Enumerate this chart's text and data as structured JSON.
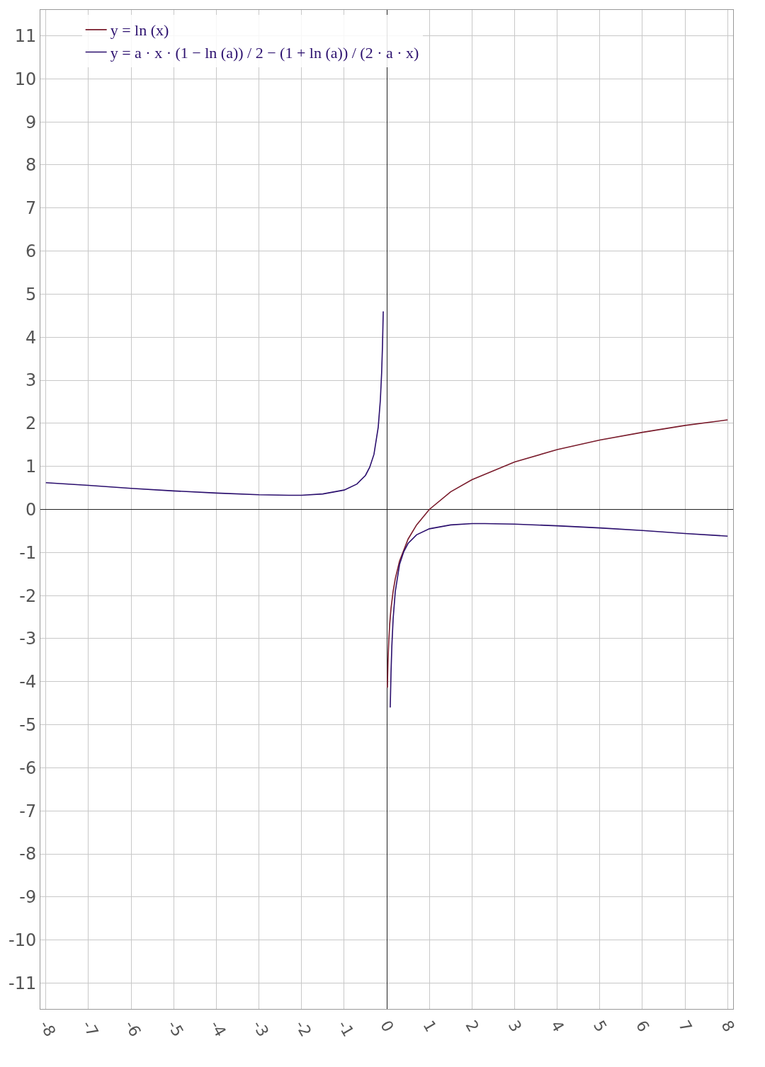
{
  "chart_data": {
    "type": "line",
    "xlim": [
      -8.13,
      8.13
    ],
    "ylim": [
      -11.6,
      11.6
    ],
    "xticks": [
      -8,
      -7,
      -6,
      -5,
      -4,
      -3,
      -2,
      -1,
      0,
      1,
      2,
      3,
      4,
      5,
      6,
      7,
      8
    ],
    "yticks": [
      -11,
      -10,
      -9,
      -8,
      -7,
      -6,
      -5,
      -4,
      -3,
      -2,
      -1,
      0,
      1,
      2,
      3,
      4,
      5,
      6,
      7,
      8,
      9,
      10,
      11
    ],
    "grid": true,
    "legend": "top left",
    "marker": "none",
    "line_style": "solid",
    "series": [
      {
        "name": "y = ln (x)",
        "color": "#7a1c2c",
        "x": [
          0.016,
          0.02,
          0.03,
          0.05,
          0.07,
          0.1,
          0.15,
          0.2,
          0.3,
          0.5,
          0.7,
          1,
          1.5,
          2,
          3,
          4,
          5,
          6,
          7,
          8
        ],
        "values": [
          -4.14,
          -3.91,
          -3.51,
          -3.0,
          -2.66,
          -2.3,
          -1.9,
          -1.61,
          -1.2,
          -0.69,
          -0.36,
          0,
          0.41,
          0.69,
          1.1,
          1.39,
          1.61,
          1.79,
          1.95,
          2.08
        ]
      },
      {
        "name": "y = a · x · (1 − ln (a)) / 2 − (1 + ln (a)) / (2 · a · x)",
        "color": "#2b0f6e",
        "x": [
          -8,
          -7,
          -6,
          -5,
          -4,
          -3,
          -2.3,
          -2,
          -1.5,
          -1,
          -0.7,
          -0.5,
          -0.4,
          -0.3,
          -0.2,
          -0.15,
          -0.12,
          -0.1,
          -0.082,
          0,
          0.082,
          0.1,
          0.12,
          0.15,
          0.2,
          0.3,
          0.4,
          0.5,
          0.7,
          1,
          1.5,
          2,
          2.3,
          3,
          4,
          5,
          6,
          7,
          8
        ],
        "values": [
          0.62,
          0.56,
          0.49,
          0.43,
          0.38,
          0.34,
          0.33,
          0.33,
          0.36,
          0.45,
          0.59,
          0.79,
          0.98,
          1.28,
          1.91,
          2.54,
          3.17,
          3.8,
          4.6,
          null,
          -4.6,
          -3.8,
          -3.17,
          -2.54,
          -1.91,
          -1.28,
          -0.98,
          -0.79,
          -0.59,
          -0.45,
          -0.36,
          -0.33,
          -0.33,
          -0.34,
          -0.38,
          -0.43,
          -0.49,
          -0.56,
          -0.62
        ]
      }
    ]
  }
}
